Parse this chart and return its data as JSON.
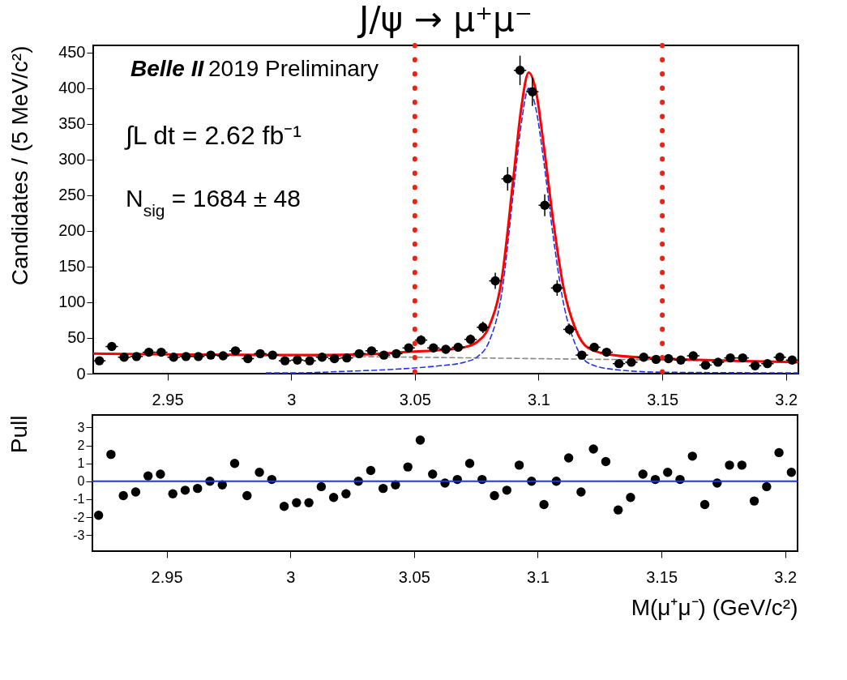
{
  "chart_data": [
    {
      "type": "scatter",
      "title": "J/ψ → μ⁺μ⁻",
      "ylabel": "Candidates / (5 MeV/c²)",
      "xlim": [
        2.92,
        3.205
      ],
      "xticks": [
        2.95,
        3,
        3.05,
        3.1,
        3.15,
        3.2
      ],
      "ylim": [
        0,
        460
      ],
      "yticks": [
        0,
        50,
        100,
        150,
        200,
        250,
        300,
        350,
        400,
        450
      ],
      "annotations": [
        "Belle II",
        "2019 Preliminary",
        "∫L dt = 2.62 fb⁻¹",
        "N$_{sig}$ = 1684 ± 48"
      ],
      "ref_lines": [
        {
          "axis": "x",
          "value": 3.05,
          "color": "#ee2211",
          "line_style": "dotted"
        },
        {
          "axis": "x",
          "value": 3.15,
          "color": "#ee2211",
          "line_style": "dotted"
        }
      ],
      "series": [
        {
          "type": "line",
          "color": "#888888",
          "line_style": "dashed",
          "x": [
            2.92,
            3.0,
            3.05,
            3.1,
            3.15,
            3.205
          ],
          "values": [
            28,
            25,
            23,
            21,
            19,
            16
          ]
        },
        {
          "type": "line",
          "color": "#2233ee",
          "line_style": "dashed",
          "x": [
            2.99,
            3.0,
            3.02,
            3.05,
            3.06,
            3.07,
            3.075,
            3.08,
            3.085,
            3.09,
            3.093,
            3.096,
            3.099,
            3.102,
            3.106,
            3.11,
            3.115,
            3.12,
            3.13,
            3.15,
            3.205
          ],
          "values": [
            1,
            1,
            3,
            8,
            11,
            16,
            23,
            45,
            110,
            260,
            350,
            400,
            370,
            300,
            190,
            100,
            40,
            15,
            6,
            2,
            1
          ]
        },
        {
          "type": "line",
          "color": "#ff0000",
          "line_style": "solid",
          "x": [
            2.92,
            2.95,
            3.0,
            3.03,
            3.05,
            3.06,
            3.07,
            3.075,
            3.08,
            3.085,
            3.09,
            3.093,
            3.096,
            3.099,
            3.102,
            3.106,
            3.11,
            3.115,
            3.12,
            3.13,
            3.15,
            3.18,
            3.205
          ],
          "values": [
            28,
            27,
            26,
            27,
            31,
            33,
            37,
            44,
            66,
            130,
            280,
            372,
            422,
            395,
            322,
            212,
            122,
            62,
            36,
            26,
            21,
            18,
            16
          ]
        },
        {
          "type": "scatter",
          "color": "#000000",
          "marker": "circle",
          "x": [
            2.9225,
            2.9275,
            2.9325,
            2.9375,
            2.9425,
            2.9475,
            2.9525,
            2.9575,
            2.9625,
            2.9675,
            2.9725,
            2.9775,
            2.9825,
            2.9875,
            2.9925,
            2.9975,
            3.0025,
            3.0075,
            3.0125,
            3.0175,
            3.0225,
            3.0275,
            3.0325,
            3.0375,
            3.0425,
            3.0475,
            3.0525,
            3.0575,
            3.0625,
            3.0675,
            3.0725,
            3.0775,
            3.0825,
            3.0875,
            3.0925,
            3.0975,
            3.1025,
            3.1075,
            3.1125,
            3.1175,
            3.1225,
            3.1275,
            3.1325,
            3.1375,
            3.1425,
            3.1475,
            3.1525,
            3.1575,
            3.1625,
            3.1675,
            3.1725,
            3.1775,
            3.1825,
            3.1875,
            3.1925,
            3.1975,
            3.2025
          ],
          "values": [
            18,
            38,
            23,
            24,
            30,
            30,
            23,
            24,
            24,
            26,
            25,
            32,
            21,
            28,
            26,
            18,
            19,
            18,
            23,
            21,
            22,
            28,
            32,
            26,
            28,
            36,
            47,
            36,
            34,
            37,
            48,
            65,
            130,
            273,
            425,
            395,
            236,
            120,
            62,
            26,
            37,
            30,
            14,
            16,
            23,
            20,
            21,
            19,
            25,
            12,
            16,
            22,
            22,
            11,
            14,
            23,
            19
          ],
          "errors": [
            4.2,
            6.2,
            4.8,
            4.9,
            5.5,
            5.5,
            4.8,
            4.9,
            4.9,
            5.1,
            5,
            5.7,
            4.6,
            5.3,
            5.1,
            4.2,
            4.4,
            4.2,
            4.8,
            4.6,
            4.7,
            5.3,
            5.7,
            5.1,
            5.3,
            6,
            6.9,
            6,
            5.8,
            6.1,
            6.9,
            8.1,
            11.4,
            16.5,
            20.6,
            19.9,
            15.4,
            11,
            7.9,
            5.1,
            6.1,
            5.5,
            3.7,
            4,
            4.8,
            4.5,
            4.6,
            4.4,
            5,
            3.5,
            4,
            4.7,
            4.7,
            3.3,
            3.7,
            4.8,
            4.4
          ],
          "xerrors": [
            0.0025,
            0.0025,
            0.0025,
            0.0025,
            0.0025,
            0.0025,
            0.0025,
            0.0025,
            0.0025,
            0.0025,
            0.0025,
            0.0025,
            0.0025,
            0.0025,
            0.0025,
            0.0025,
            0.0025,
            0.0025,
            0.0025,
            0.0025,
            0.0025,
            0.0025,
            0.0025,
            0.0025,
            0.0025,
            0.0025,
            0.0025,
            0.0025,
            0.0025,
            0.0025,
            0.0025,
            0.0025,
            0.0025,
            0.0025,
            0.0025,
            0.0025,
            0.0025,
            0.0025,
            0.0025,
            0.0025,
            0.0025,
            0.0025,
            0.0025,
            0.0025,
            0.0025,
            0.0025,
            0.0025,
            0.0025,
            0.0025,
            0.0025,
            0.0025,
            0.0025,
            0.0025,
            0.0025,
            0.0025,
            0.0025,
            0.0025
          ]
        }
      ]
    },
    {
      "type": "scatter",
      "ylabel": "Pull",
      "xlabel": "M(μ⁺μ⁻) (GeV/c²)",
      "xlim": [
        2.92,
        3.205
      ],
      "xticks": [
        2.95,
        3,
        3.05,
        3.1,
        3.15,
        3.2
      ],
      "ylim": [
        -3.9,
        3.7
      ],
      "yticks": [
        -3,
        -2,
        -1,
        0,
        1,
        2,
        3
      ],
      "ref_lines": [
        {
          "axis": "y",
          "value": 0,
          "color": "#2233ee",
          "line_style": "solid"
        }
      ],
      "series": [
        {
          "type": "scatter",
          "color": "#000000",
          "marker": "circle",
          "x": [
            2.9225,
            2.9275,
            2.9325,
            2.9375,
            2.9425,
            2.9475,
            2.9525,
            2.9575,
            2.9625,
            2.9675,
            2.9725,
            2.9775,
            2.9825,
            2.9875,
            2.9925,
            2.9975,
            3.0025,
            3.0075,
            3.0125,
            3.0175,
            3.0225,
            3.0275,
            3.0325,
            3.0375,
            3.0425,
            3.0475,
            3.0525,
            3.0575,
            3.0625,
            3.0675,
            3.0725,
            3.0775,
            3.0825,
            3.0875,
            3.0925,
            3.0975,
            3.1025,
            3.1075,
            3.1125,
            3.1175,
            3.1225,
            3.1275,
            3.1325,
            3.1375,
            3.1425,
            3.1475,
            3.1525,
            3.1575,
            3.1625,
            3.1675,
            3.1725,
            3.1775,
            3.1825,
            3.1875,
            3.1925,
            3.1975,
            3.2025
          ],
          "values": [
            -1.9,
            1.5,
            -0.8,
            -0.6,
            0.3,
            0.4,
            -0.7,
            -0.5,
            -0.4,
            0,
            -0.2,
            1,
            -0.8,
            0.5,
            0.1,
            -1.4,
            -1.2,
            -1.2,
            -0.3,
            -0.9,
            -0.7,
            0,
            0.6,
            -0.4,
            -0.2,
            0.8,
            2.3,
            0.4,
            -0.1,
            0.1,
            1,
            0.1,
            -0.8,
            -0.5,
            0.9,
            0,
            -1.3,
            0,
            1.3,
            -0.6,
            1.8,
            1.1,
            -1.6,
            -0.9,
            0.4,
            0.1,
            0.5,
            0.1,
            1.4,
            -1.3,
            -0.1,
            0.9,
            0.9,
            -1.1,
            -0.3,
            1.6,
            0.5
          ]
        }
      ]
    }
  ]
}
